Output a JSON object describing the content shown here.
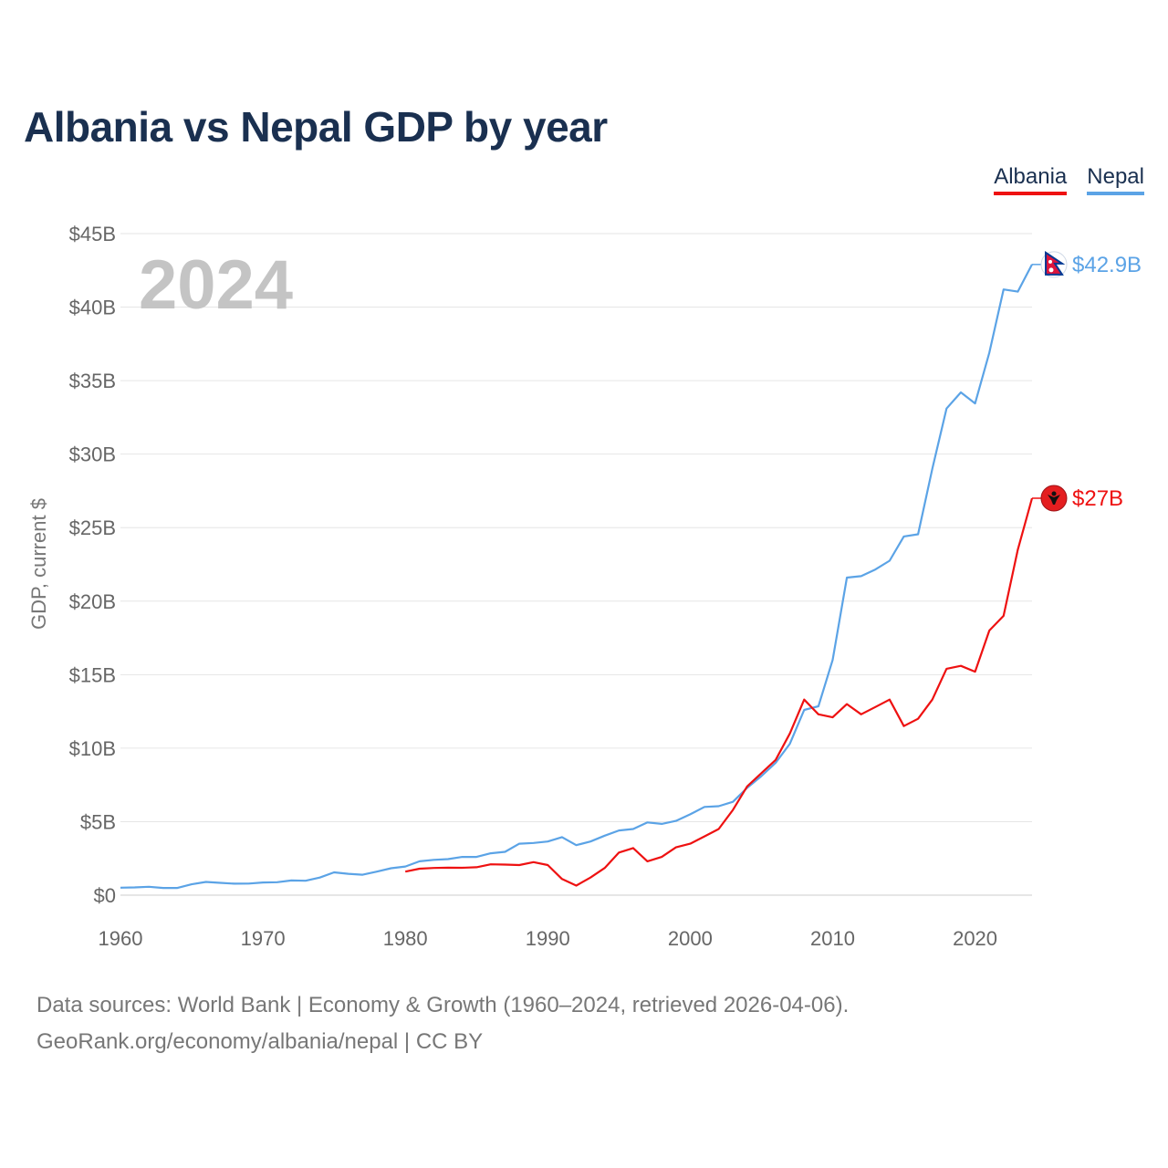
{
  "chart_data": {
    "type": "line",
    "title": "Albania vs Nepal GDP by year",
    "xlabel": "",
    "ylabel": "GDP, current $",
    "xlim": [
      1960,
      2024
    ],
    "ylim": [
      0,
      45
    ],
    "y_unit": "billion US$",
    "x_ticks": [
      1960,
      1970,
      1980,
      1990,
      2000,
      2010,
      2020
    ],
    "y_ticks": [
      0,
      5,
      10,
      15,
      20,
      25,
      30,
      35,
      40,
      45
    ],
    "y_tick_labels": [
      "$0",
      "$5B",
      "$10B",
      "$15B",
      "$20B",
      "$25B",
      "$30B",
      "$35B",
      "$40B",
      "$45B"
    ],
    "highlight_year": "2024",
    "legend_position": "top-right",
    "series": [
      {
        "name": "Albania",
        "color": "#ee1111",
        "end_label": "$27B",
        "flag_icon": "albania-flag-icon",
        "x": [
          1980,
          1981,
          1982,
          1983,
          1984,
          1985,
          1986,
          1987,
          1988,
          1989,
          1990,
          1991,
          1992,
          1993,
          1994,
          1995,
          1996,
          1997,
          1998,
          1999,
          2000,
          2001,
          2002,
          2003,
          2004,
          2005,
          2006,
          2007,
          2008,
          2009,
          2010,
          2011,
          2012,
          2013,
          2014,
          2015,
          2016,
          2017,
          2018,
          2019,
          2020,
          2021,
          2022,
          2023,
          2024
        ],
        "values": [
          1.6,
          1.8,
          1.85,
          1.87,
          1.86,
          1.9,
          2.1,
          2.08,
          2.05,
          2.25,
          2.05,
          1.1,
          0.65,
          1.2,
          1.85,
          2.9,
          3.2,
          2.3,
          2.6,
          3.25,
          3.5,
          4.0,
          4.5,
          5.8,
          7.4,
          8.3,
          9.2,
          11.0,
          13.3,
          12.3,
          12.1,
          13.0,
          12.3,
          12.8,
          13.3,
          11.5,
          12.0,
          13.3,
          15.4,
          15.6,
          15.2,
          18.0,
          19.0,
          23.5,
          27.0
        ]
      },
      {
        "name": "Nepal",
        "color": "#5ba3e6",
        "end_label": "$42.9B",
        "flag_icon": "nepal-flag-icon",
        "x": [
          1960,
          1961,
          1962,
          1963,
          1964,
          1965,
          1966,
          1967,
          1968,
          1969,
          1970,
          1971,
          1972,
          1973,
          1974,
          1975,
          1976,
          1977,
          1978,
          1979,
          1980,
          1981,
          1982,
          1983,
          1984,
          1985,
          1986,
          1987,
          1988,
          1989,
          1990,
          1991,
          1992,
          1993,
          1994,
          1995,
          1996,
          1997,
          1998,
          1999,
          2000,
          2001,
          2002,
          2003,
          2004,
          2005,
          2006,
          2007,
          2008,
          2009,
          2010,
          2011,
          2012,
          2013,
          2014,
          2015,
          2016,
          2017,
          2018,
          2019,
          2020,
          2021,
          2022,
          2023,
          2024
        ],
        "values": [
          0.51,
          0.53,
          0.57,
          0.49,
          0.49,
          0.74,
          0.9,
          0.84,
          0.78,
          0.79,
          0.86,
          0.88,
          1.0,
          0.98,
          1.2,
          1.55,
          1.45,
          1.39,
          1.6,
          1.83,
          1.95,
          2.3,
          2.4,
          2.45,
          2.6,
          2.6,
          2.85,
          2.95,
          3.5,
          3.55,
          3.65,
          3.95,
          3.4,
          3.65,
          4.05,
          4.4,
          4.5,
          4.95,
          4.85,
          5.05,
          5.5,
          6.0,
          6.05,
          6.35,
          7.3,
          8.1,
          9.0,
          10.3,
          12.6,
          12.85,
          16.0,
          21.6,
          21.7,
          22.15,
          22.75,
          24.4,
          24.55,
          29.0,
          33.1,
          34.2,
          33.45,
          36.9,
          41.2,
          41.05,
          42.9
        ]
      }
    ]
  },
  "legend": {
    "albania": "Albania",
    "nepal": "Nepal"
  },
  "footer": {
    "sources": "Data sources: World Bank | Economy & Growth (1960–2024, retrieved 2026-04-06).",
    "credit": "GeoRank.org/economy/albania/nepal | CC BY"
  }
}
